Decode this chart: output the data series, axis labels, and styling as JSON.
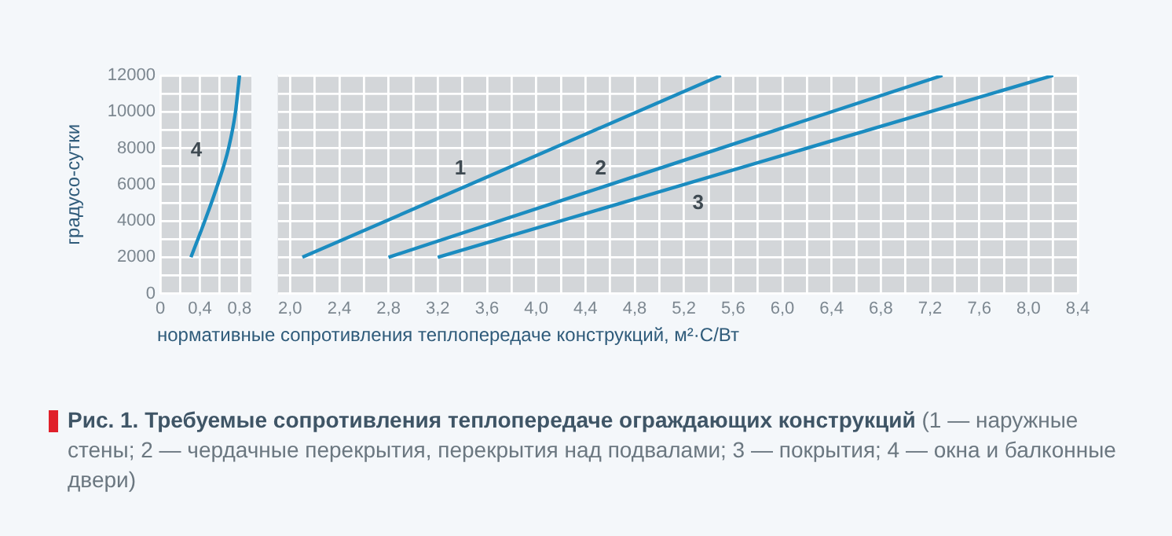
{
  "chart_data": [
    {
      "type": "line",
      "ylabel": "градусо-сутки",
      "xlim": [
        0,
        0.92
      ],
      "ylim": [
        0,
        12000
      ],
      "xticks": [
        0,
        {
          "value": 0.2,
          "label": null
        },
        {
          "value": 0.4,
          "label": "0,4"
        },
        {
          "value": 0.6,
          "label": null
        },
        {
          "value": 0.8,
          "label": "0,8"
        }
      ],
      "yticks": [
        0,
        {
          "value": 1000,
          "label": null
        },
        2000,
        {
          "value": 3000,
          "label": null
        },
        4000,
        {
          "value": 5000,
          "label": null
        },
        6000,
        {
          "value": 7000,
          "label": null
        },
        8000,
        {
          "value": 9000,
          "label": null
        },
        10000,
        {
          "value": 11000,
          "label": null
        },
        12000
      ],
      "grid": true,
      "legend": false,
      "marker": "none",
      "line_style": "solid",
      "series": [
        {
          "name": "4",
          "color": "#1b8cc0",
          "x": [
            0.31,
            0.45,
            0.58,
            0.69,
            0.76,
            0.8
          ],
          "values": [
            2000,
            4000,
            6000,
            8000,
            10000,
            12000
          ]
        }
      ]
    },
    {
      "type": "line",
      "xlabel": "нормативные сопротивления теплопередаче конструкций, м²·С/Вт",
      "xlim": [
        1.9,
        8.4
      ],
      "ylim": [
        0,
        12000
      ],
      "xticks": [
        {
          "value": 2,
          "label": "2,0"
        },
        {
          "value": 2.2,
          "label": null
        },
        {
          "value": 2.4,
          "label": "2,4"
        },
        {
          "value": 2.6,
          "label": null
        },
        {
          "value": 2.8,
          "label": "2,8"
        },
        {
          "value": 3,
          "label": null
        },
        {
          "value": 3.2,
          "label": "3,2"
        },
        {
          "value": 3.4,
          "label": null
        },
        {
          "value": 3.6,
          "label": "3,6"
        },
        {
          "value": 3.8,
          "label": null
        },
        {
          "value": 4,
          "label": "4,0"
        },
        {
          "value": 4.2,
          "label": null
        },
        {
          "value": 4.4,
          "label": "4,4"
        },
        {
          "value": 4.6,
          "label": null
        },
        {
          "value": 4.8,
          "label": "4,8"
        },
        {
          "value": 5,
          "label": null
        },
        {
          "value": 5.2,
          "label": "5,2"
        },
        {
          "value": 5.4,
          "label": null
        },
        {
          "value": 5.6,
          "label": "5,6"
        },
        {
          "value": 5.8,
          "label": null
        },
        {
          "value": 6,
          "label": "6,0"
        },
        {
          "value": 6.2,
          "label": null
        },
        {
          "value": 6.4,
          "label": "6,4"
        },
        {
          "value": 6.6,
          "label": null
        },
        {
          "value": 6.8,
          "label": "6,8"
        },
        {
          "value": 7,
          "label": null
        },
        {
          "value": 7.2,
          "label": "7,2"
        },
        {
          "value": 7.4,
          "label": null
        },
        {
          "value": 7.6,
          "label": "7,6"
        },
        {
          "value": 7.8,
          "label": null
        },
        {
          "value": 8,
          "label": "8,0"
        },
        {
          "value": 8.2,
          "label": null
        },
        {
          "value": 8.4,
          "label": "8,4"
        }
      ],
      "yticks": [
        0,
        {
          "value": 1000,
          "label": null
        },
        2000,
        {
          "value": 3000,
          "label": null
        },
        4000,
        {
          "value": 5000,
          "label": null
        },
        6000,
        {
          "value": 7000,
          "label": null
        },
        8000,
        {
          "value": 9000,
          "label": null
        },
        10000,
        {
          "value": 11000,
          "label": null
        },
        12000
      ],
      "tick_labels": "x",
      "grid": true,
      "legend": false,
      "marker": "none",
      "line_style": "solid",
      "annotations": [
        "Рис. 1. Требуемые сопротивления теплопередаче ограждающих конструкций",
        "(1 — наружные стены; 2 — чердачные перекрытия, перекрытия над подвалами; 3 — покрытия; 4 — окна и балконные двери)"
      ],
      "series": [
        {
          "name": "1",
          "color": "#1b8cc0",
          "x": [
            2.1,
            5.5
          ],
          "values": [
            2000,
            12000
          ]
        },
        {
          "name": "2",
          "color": "#1b8cc0",
          "x": [
            2.8,
            7.3
          ],
          "values": [
            2000,
            12000
          ]
        },
        {
          "name": "3",
          "color": "#1b8cc0",
          "x": [
            3.2,
            8.2
          ],
          "values": [
            2000,
            12000
          ]
        }
      ]
    }
  ]
}
